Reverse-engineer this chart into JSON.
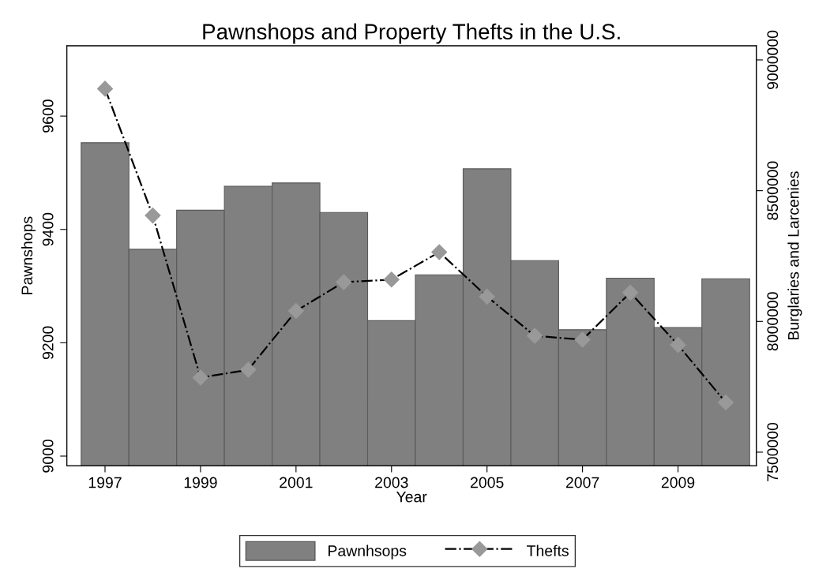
{
  "chart_data": {
    "type": "bar",
    "title": "Pawnshops and Property Thefts in the U.S.",
    "xlabel": "Year",
    "ylabel": "Pawnshops",
    "y2label": "Burglaries and Larcenies",
    "x": [
      1997,
      1998,
      1999,
      2000,
      2001,
      2002,
      2003,
      2004,
      2005,
      2006,
      2007,
      2008,
      2009,
      2010
    ],
    "series": [
      {
        "name": "Pawnhsops",
        "color": "#808080",
        "values": [
          9553,
          9365,
          9434,
          9476,
          9482,
          9430,
          9239,
          9320,
          9507,
          9345,
          9223,
          9314,
          9227,
          9313
        ]
      },
      {
        "name": "Thefts",
        "type": "line",
        "axis": "y2",
        "color": "#000000",
        "colors": [
          "#999999",
          "#999999",
          "#999999",
          "#999999",
          "#999999",
          "#999999",
          "#999999",
          "#999999",
          "#999999",
          "#999999",
          "#999999",
          "#999999",
          "#999999",
          "#999999"
        ],
        "marker": "diamond",
        "line_style": "dashdot",
        "values": [
          8890000,
          8405000,
          7785000,
          7815000,
          8040000,
          8150000,
          8160000,
          8265000,
          8095000,
          7945000,
          7930000,
          8110000,
          7910000,
          7690000
        ]
      }
    ],
    "xlim": [
      1996.2,
      2010.64
    ],
    "xticks": [
      1997,
      1999,
      2001,
      2003,
      2005,
      2007,
      2009
    ],
    "ylim": [
      8983,
      9724
    ],
    "yticks": [
      9000,
      9200,
      9400,
      9600
    ],
    "y2lim": [
      7448000,
      9054000
    ],
    "y2ticks": [
      7500000,
      8000000,
      8500000,
      9000000
    ],
    "legend": "bottom",
    "grid": false
  }
}
